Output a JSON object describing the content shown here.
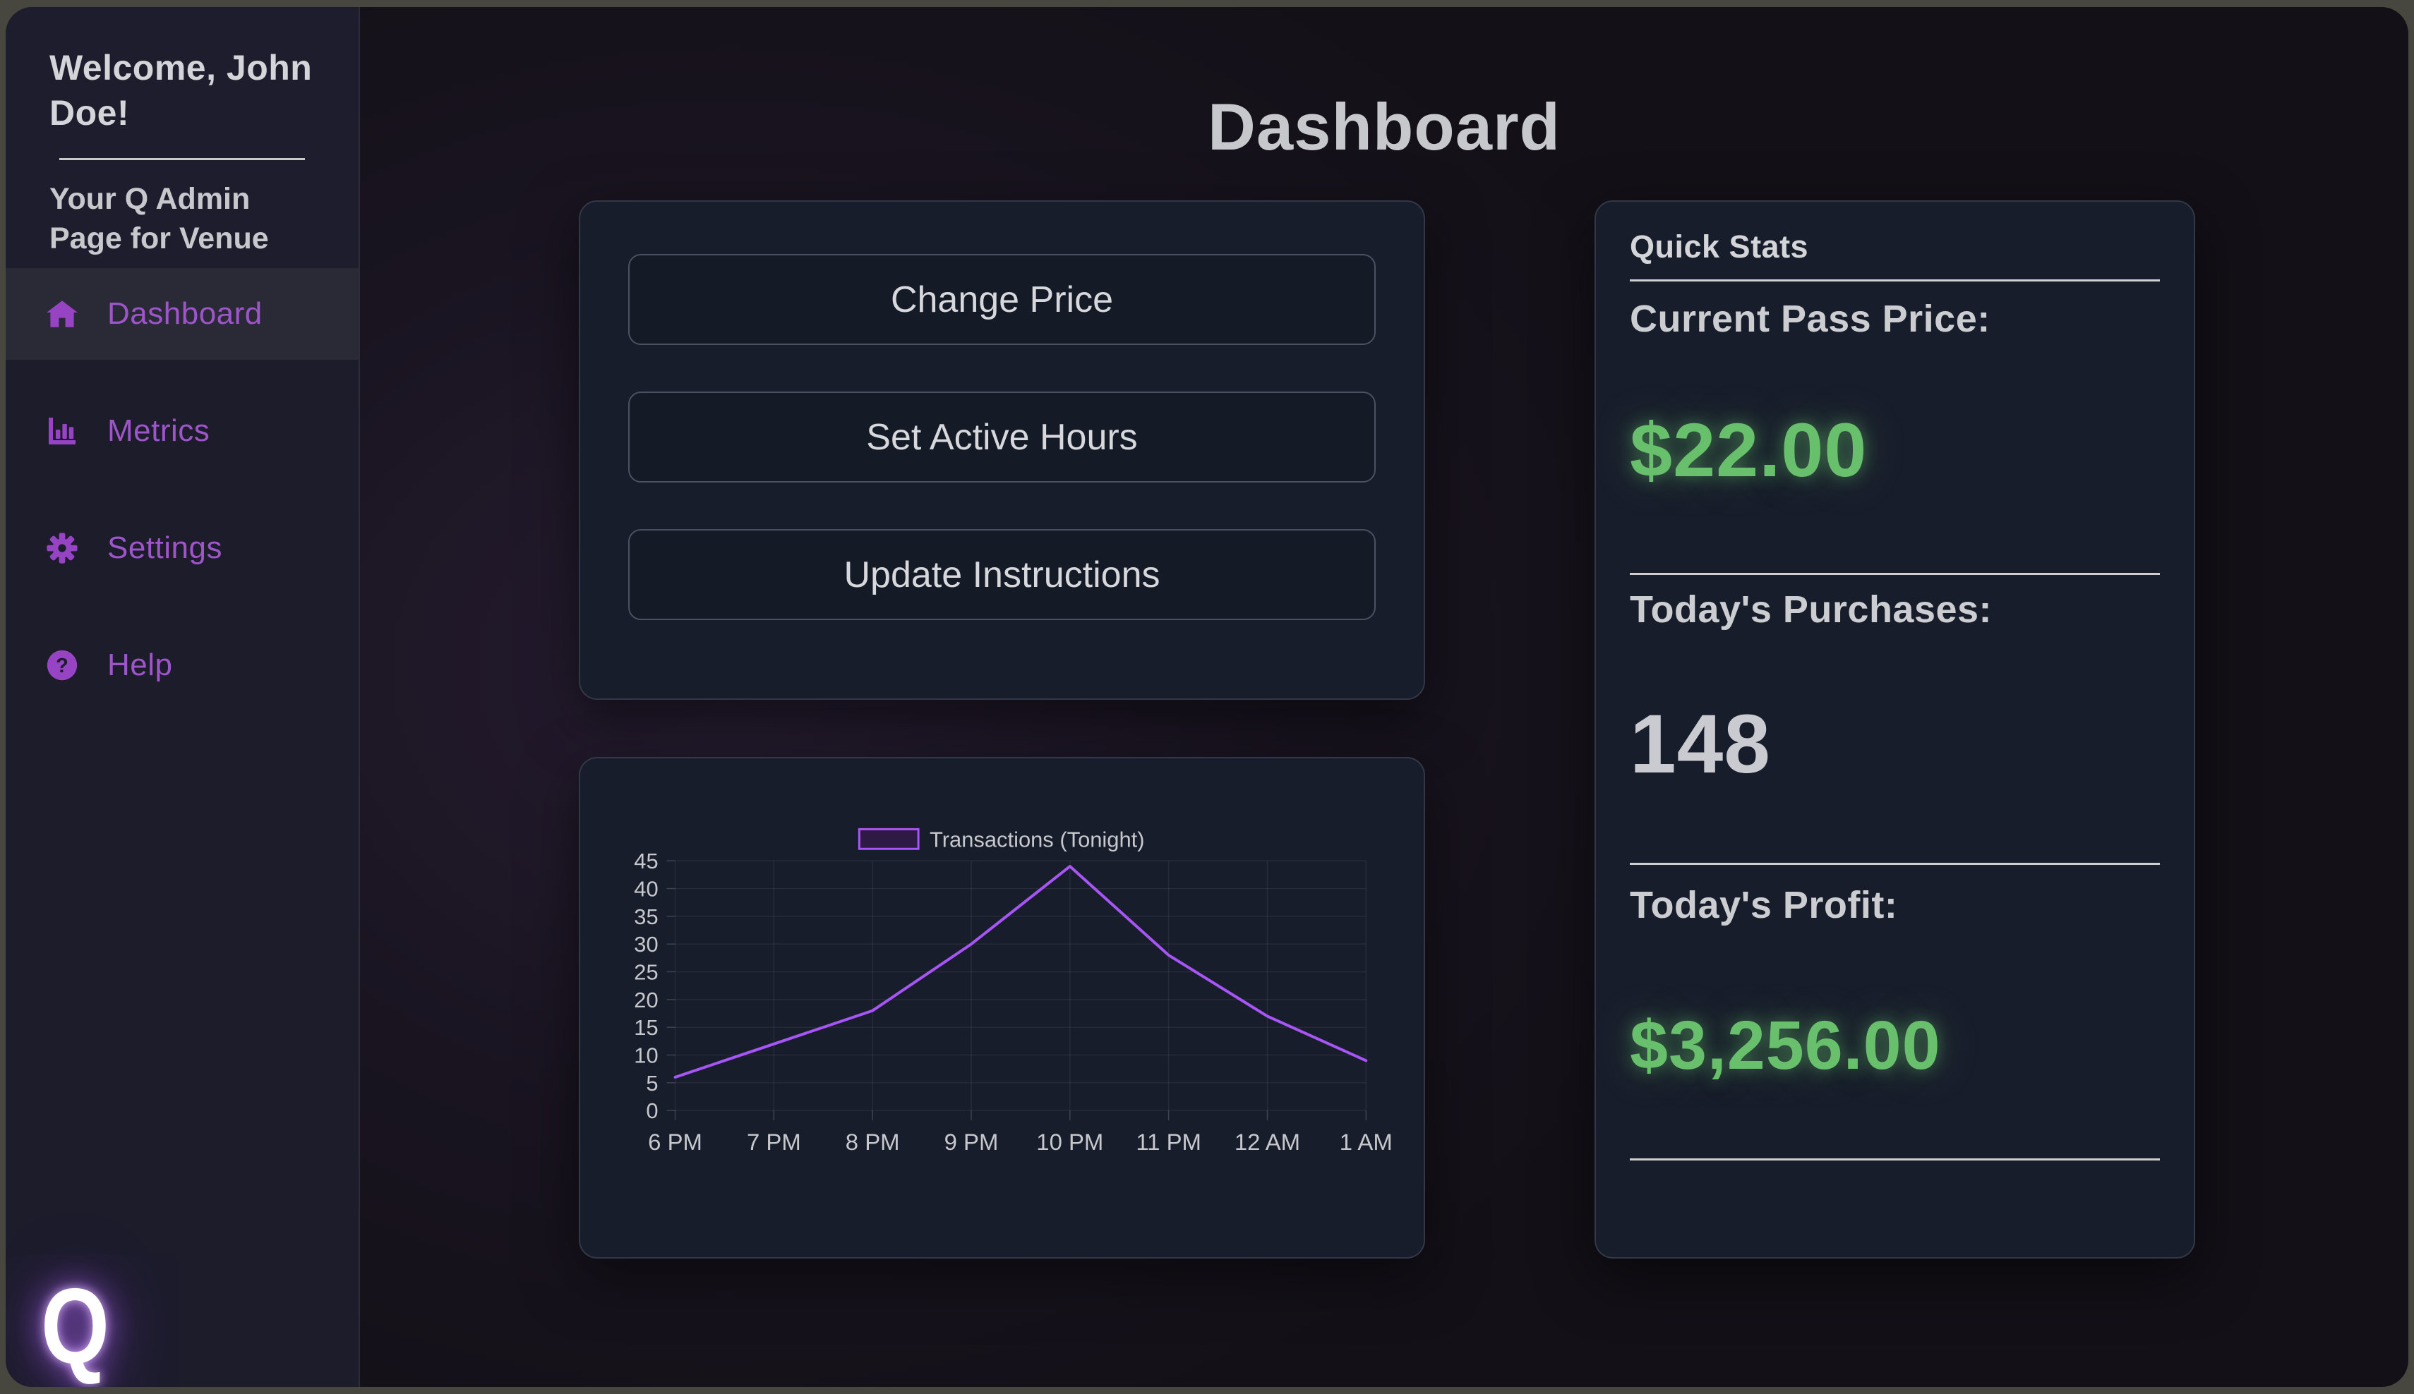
{
  "colors": {
    "accent_text": "#9d55c9",
    "accent_icon": "#9643c4",
    "green": "#68c06c",
    "chart_line": "#a855f7"
  },
  "sidebar": {
    "welcome_title": "Welcome, John Doe!",
    "subtitle": "Your Q Admin Page for Venue",
    "items": [
      {
        "label": "Dashboard",
        "icon": "home-icon",
        "active": true
      },
      {
        "label": "Metrics",
        "icon": "bar-chart-icon",
        "active": false
      },
      {
        "label": "Settings",
        "icon": "gear-icon",
        "active": false
      },
      {
        "label": "Help",
        "icon": "help-circle-icon",
        "active": false
      }
    ],
    "logo_letter": "Q"
  },
  "header": {
    "title": "Dashboard"
  },
  "actions": {
    "buttons": [
      {
        "label": "Change Price"
      },
      {
        "label": "Set Active Hours"
      },
      {
        "label": "Update Instructions"
      }
    ]
  },
  "chart_data": {
    "type": "line",
    "title": "",
    "legend_position": "top-center",
    "grid": true,
    "categories": [
      "6 PM",
      "7 PM",
      "8 PM",
      "9 PM",
      "10 PM",
      "11 PM",
      "12 AM",
      "1 AM"
    ],
    "series": [
      {
        "name": "Transactions (Tonight)",
        "values": [
          6,
          12,
          18,
          30,
          44,
          28,
          17,
          9
        ]
      }
    ],
    "xlabel": "",
    "ylabel": "",
    "ylim": [
      0,
      45
    ],
    "ytick_step": 5,
    "line_color": "#a855f7",
    "legend_fill": "#2e1b45",
    "tick_color": "#c6c8cc"
  },
  "quick_stats": {
    "title": "Quick Stats",
    "stats": [
      {
        "label": "Current Pass Price:",
        "value": "$22.00",
        "color": "green"
      },
      {
        "label": "Today's Purchases:",
        "value": "148",
        "color": "gray"
      },
      {
        "label": "Today's Profit:",
        "value": "$3,256.00",
        "color": "green"
      }
    ]
  }
}
